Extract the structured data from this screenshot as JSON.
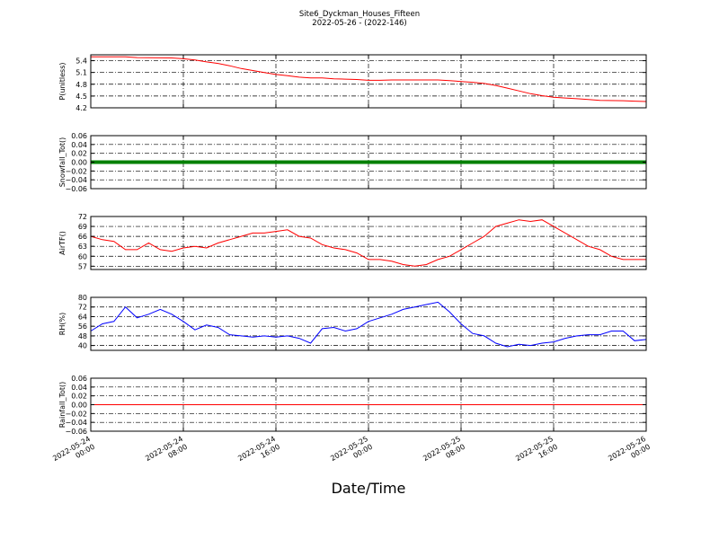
{
  "chart_data": {
    "title": "Site6_Dyckman_Houses_Fifteen",
    "subtitle": "2022-05-26 - (2022-146)",
    "xlabel": "Date/Time",
    "x_range": [
      "2022-05-24 00:00",
      "2022-05-26 00:00"
    ],
    "x_ticks": [
      "2022-05-24 00:00",
      "2022-05-24 08:00",
      "2022-05-24 16:00",
      "2022-05-25 00:00",
      "2022-05-25 08:00",
      "2022-05-25 16:00",
      "2022-05-26 00:00"
    ],
    "x_tick_labels": [
      [
        "2022-05-24",
        "00:00"
      ],
      [
        "2022-05-24",
        "08:00"
      ],
      [
        "2022-05-24",
        "16:00"
      ],
      [
        "2022-05-25",
        "00:00"
      ],
      [
        "2022-05-25",
        "08:00"
      ],
      [
        "2022-05-25",
        "16:00"
      ],
      [
        "2022-05-26",
        "00:00"
      ]
    ],
    "grid": true,
    "panels": [
      {
        "type": "line",
        "ylabel": "P(unitless)",
        "ylim": [
          4.2,
          5.55
        ],
        "yticks": [
          4.2,
          4.5,
          4.8,
          5.1,
          5.4
        ],
        "ytick_labels": [
          "4.2",
          "4.5",
          "4.8",
          "5.1",
          "5.4"
        ],
        "color": "#ff0000",
        "points": [
          [
            "2022-05-24 00:00",
            5.5
          ],
          [
            "2022-05-24 03:00",
            5.5
          ],
          [
            "2022-05-24 04:00",
            5.48
          ],
          [
            "2022-05-24 07:00",
            5.47
          ],
          [
            "2022-05-24 08:00",
            5.45
          ],
          [
            "2022-05-24 09:00",
            5.42
          ],
          [
            "2022-05-24 10:00",
            5.37
          ],
          [
            "2022-05-24 11:00",
            5.33
          ],
          [
            "2022-05-24 12:00",
            5.27
          ],
          [
            "2022-05-24 13:00",
            5.2
          ],
          [
            "2022-05-24 14:00",
            5.15
          ],
          [
            "2022-05-24 15:00",
            5.1
          ],
          [
            "2022-05-24 16:00",
            5.05
          ],
          [
            "2022-05-24 17:00",
            5.02
          ],
          [
            "2022-05-24 18:00",
            4.98
          ],
          [
            "2022-05-24 19:00",
            4.96
          ],
          [
            "2022-05-24 20:00",
            4.96
          ],
          [
            "2022-05-24 21:00",
            4.94
          ],
          [
            "2022-05-24 22:00",
            4.93
          ],
          [
            "2022-05-24 23:00",
            4.92
          ],
          [
            "2022-05-25 00:00",
            4.9
          ],
          [
            "2022-05-25 01:00",
            4.9
          ],
          [
            "2022-05-25 02:00",
            4.91
          ],
          [
            "2022-05-25 04:00",
            4.91
          ],
          [
            "2022-05-25 06:00",
            4.91
          ],
          [
            "2022-05-25 07:00",
            4.89
          ],
          [
            "2022-05-25 08:00",
            4.87
          ],
          [
            "2022-05-25 09:00",
            4.85
          ],
          [
            "2022-05-25 10:00",
            4.82
          ],
          [
            "2022-05-25 11:00",
            4.77
          ],
          [
            "2022-05-25 12:00",
            4.7
          ],
          [
            "2022-05-25 13:00",
            4.63
          ],
          [
            "2022-05-25 14:00",
            4.56
          ],
          [
            "2022-05-25 15:00",
            4.51
          ],
          [
            "2022-05-25 16:00",
            4.47
          ],
          [
            "2022-05-25 17:00",
            4.45
          ],
          [
            "2022-05-25 18:00",
            4.43
          ],
          [
            "2022-05-25 19:00",
            4.41
          ],
          [
            "2022-05-25 20:00",
            4.39
          ],
          [
            "2022-05-25 22:00",
            4.38
          ],
          [
            "2022-05-25 23:00",
            4.37
          ],
          [
            "2022-05-26 00:00",
            4.36
          ]
        ]
      },
      {
        "type": "line",
        "ylabel": "Snowfall_Tot()",
        "ylim": [
          -0.06,
          0.06
        ],
        "yticks": [
          -0.06,
          -0.04,
          -0.02,
          0.0,
          0.02,
          0.04,
          0.06
        ],
        "ytick_labels": [
          "−0.06",
          "−0.04",
          "−0.02",
          "0.00",
          "0.02",
          "0.04",
          "0.06"
        ],
        "color": "#008000",
        "marker": "dot",
        "points": [
          [
            "2022-05-24 00:00",
            0.0
          ],
          [
            "2022-05-26 00:00",
            0.0
          ]
        ]
      },
      {
        "type": "line",
        "ylabel": "AirTF()",
        "ylim": [
          56,
          72
        ],
        "yticks": [
          57,
          60,
          63,
          66,
          69,
          72
        ],
        "ytick_labels": [
          "57",
          "60",
          "63",
          "66",
          "69",
          "72"
        ],
        "color": "#ff0000",
        "points": [
          [
            "2022-05-24 00:00",
            66
          ],
          [
            "2022-05-24 01:00",
            65
          ],
          [
            "2022-05-24 02:00",
            64.5
          ],
          [
            "2022-05-24 03:00",
            62
          ],
          [
            "2022-05-24 04:00",
            62
          ],
          [
            "2022-05-24 05:00",
            64
          ],
          [
            "2022-05-24 06:00",
            62
          ],
          [
            "2022-05-24 07:00",
            61.5
          ],
          [
            "2022-05-24 08:00",
            62.5
          ],
          [
            "2022-05-24 09:00",
            63
          ],
          [
            "2022-05-24 10:00",
            62.5
          ],
          [
            "2022-05-24 11:00",
            64
          ],
          [
            "2022-05-24 12:00",
            65
          ],
          [
            "2022-05-24 13:00",
            66
          ],
          [
            "2022-05-24 14:00",
            67
          ],
          [
            "2022-05-24 15:00",
            67
          ],
          [
            "2022-05-24 16:00",
            67.5
          ],
          [
            "2022-05-24 17:00",
            68
          ],
          [
            "2022-05-24 18:00",
            66
          ],
          [
            "2022-05-24 19:00",
            65.5
          ],
          [
            "2022-05-24 20:00",
            63.5
          ],
          [
            "2022-05-24 21:00",
            62.5
          ],
          [
            "2022-05-24 22:00",
            62
          ],
          [
            "2022-05-24 23:00",
            61
          ],
          [
            "2022-05-25 00:00",
            59
          ],
          [
            "2022-05-25 01:00",
            59
          ],
          [
            "2022-05-25 02:00",
            58.5
          ],
          [
            "2022-05-25 03:00",
            57.5
          ],
          [
            "2022-05-25 04:00",
            57
          ],
          [
            "2022-05-25 05:00",
            57.5
          ],
          [
            "2022-05-25 06:00",
            59
          ],
          [
            "2022-05-25 07:00",
            60
          ],
          [
            "2022-05-25 08:00",
            62
          ],
          [
            "2022-05-25 09:00",
            64
          ],
          [
            "2022-05-25 10:00",
            66
          ],
          [
            "2022-05-25 11:00",
            69
          ],
          [
            "2022-05-25 12:00",
            70
          ],
          [
            "2022-05-25 13:00",
            71
          ],
          [
            "2022-05-25 14:00",
            70.5
          ],
          [
            "2022-05-25 15:00",
            71
          ],
          [
            "2022-05-25 16:00",
            69
          ],
          [
            "2022-05-25 17:00",
            67
          ],
          [
            "2022-05-25 18:00",
            65
          ],
          [
            "2022-05-25 19:00",
            63
          ],
          [
            "2022-05-25 20:00",
            62
          ],
          [
            "2022-05-25 21:00",
            60
          ],
          [
            "2022-05-25 22:00",
            59
          ],
          [
            "2022-05-25 23:00",
            59
          ],
          [
            "2022-05-26 00:00",
            59
          ]
        ]
      },
      {
        "type": "line",
        "ylabel": "RH(%)",
        "ylim": [
          36,
          80
        ],
        "yticks": [
          40,
          48,
          56,
          64,
          72,
          80
        ],
        "ytick_labels": [
          "40",
          "48",
          "56",
          "64",
          "72",
          "80"
        ],
        "color": "#0000ff",
        "points": [
          [
            "2022-05-24 00:00",
            52
          ],
          [
            "2022-05-24 01:00",
            58
          ],
          [
            "2022-05-24 02:00",
            60
          ],
          [
            "2022-05-24 03:00",
            72
          ],
          [
            "2022-05-24 04:00",
            63
          ],
          [
            "2022-05-24 05:00",
            66
          ],
          [
            "2022-05-24 06:00",
            70
          ],
          [
            "2022-05-24 07:00",
            66
          ],
          [
            "2022-05-24 08:00",
            60
          ],
          [
            "2022-05-24 09:00",
            53
          ],
          [
            "2022-05-24 10:00",
            57
          ],
          [
            "2022-05-24 11:00",
            55
          ],
          [
            "2022-05-24 12:00",
            49
          ],
          [
            "2022-05-24 13:00",
            48
          ],
          [
            "2022-05-24 14:00",
            47
          ],
          [
            "2022-05-24 15:00",
            48
          ],
          [
            "2022-05-24 16:00",
            47
          ],
          [
            "2022-05-24 17:00",
            48
          ],
          [
            "2022-05-24 18:00",
            46
          ],
          [
            "2022-05-24 19:00",
            42
          ],
          [
            "2022-05-24 20:00",
            54
          ],
          [
            "2022-05-24 21:00",
            55
          ],
          [
            "2022-05-24 22:00",
            52
          ],
          [
            "2022-05-24 23:00",
            54
          ],
          [
            "2022-05-25 00:00",
            60
          ],
          [
            "2022-05-25 01:00",
            63
          ],
          [
            "2022-05-25 02:00",
            66
          ],
          [
            "2022-05-25 03:00",
            70
          ],
          [
            "2022-05-25 04:00",
            72
          ],
          [
            "2022-05-25 05:00",
            74
          ],
          [
            "2022-05-25 06:00",
            76
          ],
          [
            "2022-05-25 07:00",
            68
          ],
          [
            "2022-05-25 08:00",
            58
          ],
          [
            "2022-05-25 09:00",
            50
          ],
          [
            "2022-05-25 10:00",
            48
          ],
          [
            "2022-05-25 11:00",
            42
          ],
          [
            "2022-05-25 12:00",
            39
          ],
          [
            "2022-05-25 13:00",
            41
          ],
          [
            "2022-05-25 14:00",
            40
          ],
          [
            "2022-05-25 15:00",
            42
          ],
          [
            "2022-05-25 16:00",
            43
          ],
          [
            "2022-05-25 17:00",
            46
          ],
          [
            "2022-05-25 18:00",
            48
          ],
          [
            "2022-05-25 19:00",
            49
          ],
          [
            "2022-05-25 20:00",
            49
          ],
          [
            "2022-05-25 21:00",
            52
          ],
          [
            "2022-05-25 22:00",
            52
          ],
          [
            "2022-05-25 23:00",
            44
          ],
          [
            "2022-05-26 00:00",
            45
          ]
        ]
      },
      {
        "type": "line",
        "ylabel": "Rainfall_Tot()",
        "ylim": [
          -0.06,
          0.06
        ],
        "yticks": [
          -0.06,
          -0.04,
          -0.02,
          0.0,
          0.02,
          0.04,
          0.06
        ],
        "ytick_labels": [
          "−0.06",
          "−0.04",
          "−0.02",
          "0.00",
          "0.02",
          "0.04",
          "0.06"
        ],
        "color": "#ff0000",
        "points": [
          [
            "2022-05-24 00:00",
            0.0
          ],
          [
            "2022-05-26 00:00",
            0.0
          ]
        ]
      }
    ]
  }
}
